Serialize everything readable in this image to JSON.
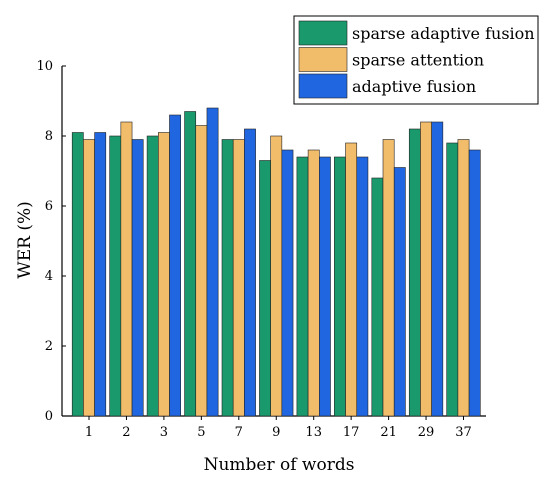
{
  "chart_data": {
    "type": "bar",
    "title": "",
    "xlabel": "Number of words",
    "ylabel": "WER (%)",
    "ylim": [
      0,
      10
    ],
    "yticks": [
      0,
      2,
      4,
      6,
      8,
      10
    ],
    "categories": [
      "1",
      "2",
      "3",
      "5",
      "7",
      "9",
      "13",
      "17",
      "21",
      "29",
      "37"
    ],
    "series": [
      {
        "name": "sparse adaptive fusion",
        "color": "#1a9a6c",
        "values": [
          8.1,
          8.0,
          8.0,
          8.7,
          7.9,
          7.3,
          7.4,
          7.4,
          6.8,
          8.2,
          7.8
        ]
      },
      {
        "name": "sparse attention",
        "color": "#f2bd6b",
        "values": [
          7.9,
          8.4,
          8.1,
          8.3,
          7.9,
          8.0,
          7.6,
          7.8,
          7.9,
          8.4,
          7.9
        ]
      },
      {
        "name": "adaptive fusion",
        "color": "#1f66e0",
        "values": [
          8.1,
          7.9,
          8.6,
          8.8,
          8.2,
          7.6,
          7.4,
          7.4,
          7.1,
          8.4,
          7.6
        ]
      }
    ],
    "legend": "top-right",
    "grid": false
  }
}
